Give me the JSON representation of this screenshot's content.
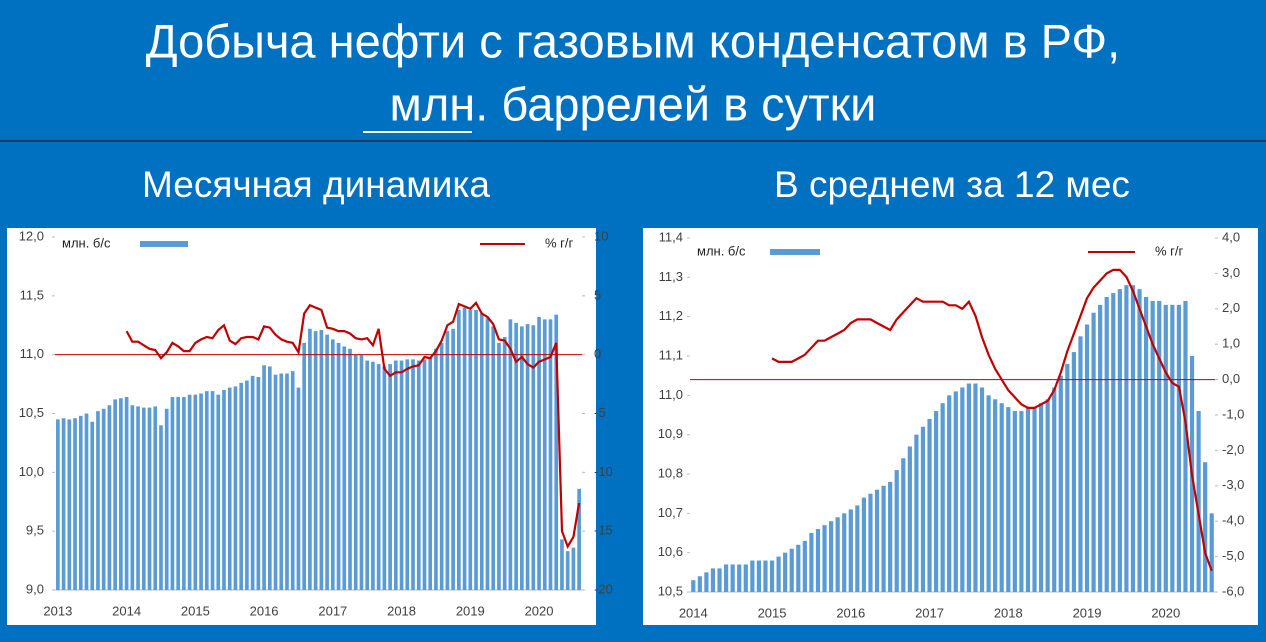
{
  "header": {
    "title_lines": [
      "Добыча нефти с газовым конденсатом в РФ,",
      "млн. баррелей в сутки"
    ]
  },
  "chart_data": [
    {
      "type": "bar_line",
      "title": "Месячная динамика",
      "categories": [
        "2013",
        null,
        null,
        null,
        null,
        null,
        null,
        null,
        null,
        null,
        null,
        null,
        "2014",
        null,
        null,
        null,
        null,
        null,
        null,
        null,
        null,
        null,
        null,
        null,
        "2015",
        null,
        null,
        null,
        null,
        null,
        null,
        null,
        null,
        null,
        null,
        null,
        "2016",
        null,
        null,
        null,
        null,
        null,
        null,
        null,
        null,
        null,
        null,
        null,
        "2017",
        null,
        null,
        null,
        null,
        null,
        null,
        null,
        null,
        null,
        null,
        null,
        "2018",
        null,
        null,
        null,
        null,
        null,
        null,
        null,
        null,
        null,
        null,
        null,
        "2019",
        null,
        null,
        null,
        null,
        null,
        null,
        null,
        null,
        null,
        null,
        null,
        "2020",
        null,
        null,
        null,
        null,
        null,
        null,
        null
      ],
      "series": [
        {
          "name": "млн. б/с",
          "color": "#5b9bd5",
          "values": [
            10.45,
            10.46,
            10.45,
            10.46,
            10.48,
            10.5,
            10.43,
            10.52,
            10.54,
            10.57,
            10.62,
            10.63,
            10.64,
            10.57,
            10.56,
            10.55,
            10.55,
            10.56,
            10.4,
            10.54,
            10.64,
            10.64,
            10.64,
            10.66,
            10.66,
            10.67,
            10.69,
            10.69,
            10.66,
            10.7,
            10.72,
            10.73,
            10.76,
            10.78,
            10.82,
            10.81,
            10.91,
            10.9,
            10.83,
            10.84,
            10.84,
            10.86,
            10.72,
            11.1,
            11.22,
            11.2,
            11.21,
            11.17,
            11.13,
            11.1,
            11.07,
            11.05,
            11.0,
            11.0,
            10.95,
            10.94,
            10.92,
            10.9,
            10.92,
            10.95,
            10.95,
            10.96,
            10.96,
            10.95,
            10.96,
            10.98,
            11.05,
            11.1,
            11.2,
            11.22,
            11.38,
            11.4,
            11.38,
            11.38,
            11.35,
            11.31,
            11.24,
            11.1,
            11.15,
            11.3,
            11.27,
            11.24,
            11.26,
            11.25,
            11.32,
            11.3,
            11.3,
            11.34,
            9.43,
            9.33,
            9.36,
            9.86
          ]
        },
        {
          "name": "% г/г",
          "color": "#c00000",
          "axis": "y2",
          "values": [
            null,
            null,
            null,
            null,
            null,
            null,
            null,
            null,
            null,
            null,
            null,
            null,
            2.0,
            1.1,
            1.1,
            0.8,
            0.5,
            0.4,
            -0.3,
            0.2,
            1.0,
            0.7,
            0.3,
            0.3,
            1.0,
            1.3,
            1.5,
            1.4,
            2.1,
            2.5,
            1.2,
            0.9,
            1.4,
            1.5,
            1.5,
            1.3,
            2.4,
            2.3,
            1.7,
            1.3,
            1.1,
            1.0,
            0.2,
            3.5,
            4.2,
            4.0,
            3.8,
            2.3,
            2.2,
            2.0,
            2.0,
            1.8,
            1.4,
            1.3,
            1.4,
            0.8,
            2.2,
            -1.2,
            -1.8,
            -1.5,
            -1.5,
            -1.2,
            -1.0,
            -0.9,
            -0.2,
            -0.3,
            0.3,
            1.2,
            2.5,
            2.8,
            4.3,
            4.1,
            3.9,
            4.4,
            3.5,
            3.2,
            2.6,
            1.3,
            1.2,
            0.5,
            -0.6,
            -0.2,
            -0.8,
            -1.1,
            -0.6,
            -0.4,
            -0.2,
            1.0,
            -15.0,
            -16.3,
            -15.5,
            -12.6
          ]
        }
      ],
      "ylim": [
        9,
        12
      ],
      "yticks": [
        {
          "value": 9,
          "label": "9,0"
        },
        {
          "value": 9.5,
          "label": "9,5"
        },
        {
          "value": 10,
          "label": "10,0"
        },
        {
          "value": 10.5,
          "label": "10,5"
        },
        {
          "value": 11,
          "label": "11,0"
        },
        {
          "value": 11.5,
          "label": "11,5"
        },
        {
          "value": 12,
          "label": "12,0"
        }
      ],
      "y2lim": [
        -20,
        10
      ],
      "y2ticks": [
        -20,
        -15,
        -10,
        -5,
        0,
        5,
        10
      ],
      "y2_reference_line": 0
    },
    {
      "type": "bar_line",
      "title": "В среднем за 12 мес",
      "categories": [
        "2014",
        null,
        null,
        null,
        null,
        null,
        null,
        null,
        null,
        null,
        null,
        null,
        "2015",
        null,
        null,
        null,
        null,
        null,
        null,
        null,
        null,
        null,
        null,
        null,
        "2016",
        null,
        null,
        null,
        null,
        null,
        null,
        null,
        null,
        null,
        null,
        null,
        "2017",
        null,
        null,
        null,
        null,
        null,
        null,
        null,
        null,
        null,
        null,
        null,
        "2018",
        null,
        null,
        null,
        null,
        null,
        null,
        null,
        null,
        null,
        null,
        null,
        "2019",
        null,
        null,
        null,
        null,
        null,
        null,
        null,
        null,
        null,
        null,
        null,
        "2020",
        null,
        null,
        null,
        null,
        null,
        null,
        null
      ],
      "series": [
        {
          "name": "млн. б/с",
          "color": "#5b9bd5",
          "values": [
            10.53,
            10.54,
            10.55,
            10.56,
            10.56,
            10.57,
            10.57,
            10.57,
            10.57,
            10.58,
            10.58,
            10.58,
            10.58,
            10.59,
            10.6,
            10.61,
            10.62,
            10.63,
            10.65,
            10.66,
            10.67,
            10.68,
            10.69,
            10.7,
            10.71,
            10.72,
            10.74,
            10.75,
            10.76,
            10.77,
            10.78,
            10.81,
            10.84,
            10.87,
            10.9,
            10.92,
            10.94,
            10.96,
            10.98,
            11.0,
            11.01,
            11.02,
            11.03,
            11.03,
            11.02,
            11.0,
            10.99,
            10.98,
            10.97,
            10.96,
            10.96,
            10.97,
            10.97,
            10.98,
            10.99,
            11.02,
            11.05,
            11.08,
            11.11,
            11.15,
            11.18,
            11.21,
            11.23,
            11.25,
            11.26,
            11.27,
            11.28,
            11.28,
            11.27,
            11.25,
            11.24,
            11.24,
            11.23,
            11.23,
            11.23,
            11.24,
            11.1,
            10.96,
            10.83,
            10.7
          ]
        },
        {
          "name": "% г/г",
          "color": "#c00000",
          "axis": "y2",
          "values": [
            null,
            null,
            null,
            null,
            null,
            null,
            null,
            null,
            null,
            null,
            null,
            null,
            0.6,
            0.5,
            0.5,
            0.5,
            0.6,
            0.7,
            0.9,
            1.1,
            1.1,
            1.2,
            1.3,
            1.4,
            1.6,
            1.7,
            1.7,
            1.7,
            1.6,
            1.5,
            1.4,
            1.7,
            1.9,
            2.1,
            2.3,
            2.2,
            2.2,
            2.2,
            2.2,
            2.1,
            2.1,
            2.0,
            2.2,
            1.8,
            1.2,
            0.7,
            0.3,
            0.0,
            -0.3,
            -0.5,
            -0.7,
            -0.8,
            -0.8,
            -0.7,
            -0.6,
            -0.3,
            0.2,
            0.8,
            1.3,
            1.8,
            2.3,
            2.6,
            2.8,
            3.0,
            3.1,
            3.1,
            2.9,
            2.5,
            2.0,
            1.5,
            1.0,
            0.6,
            0.2,
            -0.1,
            -0.2,
            -1.2,
            -2.7,
            -3.8,
            -4.9,
            -5.4
          ]
        }
      ],
      "ylim": [
        10.5,
        11.4
      ],
      "yticks": [
        {
          "value": 10.5,
          "label": "10,5"
        },
        {
          "value": 10.6,
          "label": "10,6"
        },
        {
          "value": 10.7,
          "label": "10,7"
        },
        {
          "value": 10.8,
          "label": "10,8"
        },
        {
          "value": 10.9,
          "label": "10,9"
        },
        {
          "value": 11,
          "label": "11,0"
        },
        {
          "value": 11.1,
          "label": "11,1"
        },
        {
          "value": 11.2,
          "label": "11,2"
        },
        {
          "value": 11.3,
          "label": "11,3"
        },
        {
          "value": 11.4,
          "label": "11,4"
        }
      ],
      "y2lim": [
        -6,
        4
      ],
      "y2ticks": [
        {
          "value": -6,
          "label": "-6,0"
        },
        {
          "value": -5,
          "label": "-5,0"
        },
        {
          "value": -4,
          "label": "-4,0"
        },
        {
          "value": -3,
          "label": "-3,0"
        },
        {
          "value": -2,
          "label": "-2,0"
        },
        {
          "value": -1,
          "label": "-1,0"
        },
        {
          "value": 0,
          "label": "0,0"
        },
        {
          "value": 1,
          "label": "1,0"
        },
        {
          "value": 2,
          "label": "2,0"
        },
        {
          "value": 3,
          "label": "3,0"
        },
        {
          "value": 4,
          "label": "4,0"
        }
      ],
      "y2_reference_line": 0
    }
  ]
}
